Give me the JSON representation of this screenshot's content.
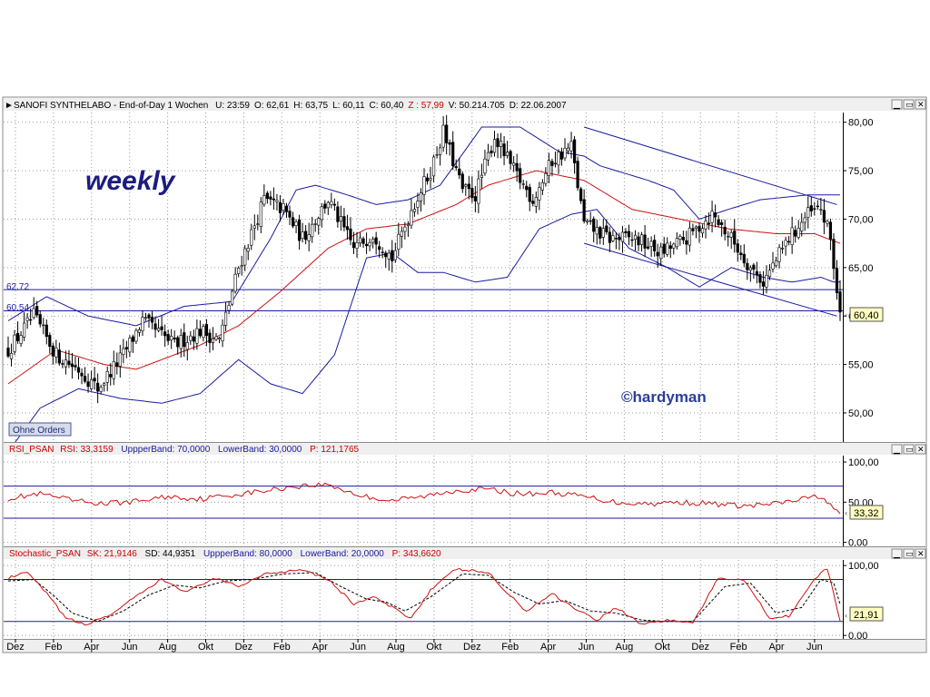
{
  "main_panel": {
    "header": {
      "symbol": "SANOFI SYNTHELABO",
      "mode": "End-of-Day 1 Wochen",
      "items": [
        {
          "k": "U:",
          "v": "23:59",
          "color": "#000000"
        },
        {
          "k": "O:",
          "v": "62,61",
          "color": "#000000"
        },
        {
          "k": "H:",
          "v": "63,75",
          "color": "#000000"
        },
        {
          "k": "L:",
          "v": "60,11",
          "color": "#000000"
        },
        {
          "k": "C:",
          "v": "60,40",
          "color": "#000000"
        },
        {
          "k": "Z :",
          "v": "57,99",
          "color": "#cc0000"
        },
        {
          "k": "V:",
          "v": "50.214.705",
          "color": "#000000"
        },
        {
          "k": "D:",
          "v": "22.06.2007",
          "color": "#000000"
        }
      ]
    },
    "weekly_label": "weekly",
    "copyright_label": "©hardyman",
    "orders_button": "Ohne Orders",
    "hline_labels": [
      "62.72",
      "60.54"
    ],
    "last_price_badge": "60,40"
  },
  "rsi_panel": {
    "header_parts": [
      "RSI_PSAN",
      "RSI: 33,3159",
      "UppperBand: 70,0000",
      "LowerBand: 30,0000",
      "P: 121,1765"
    ],
    "badge": "33,32"
  },
  "stoch_panel": {
    "header_parts": [
      "Stochastic_PSAN",
      "SK: 21,9146",
      "SD: 44,9351",
      "UppperBand: 80,0000",
      "LowerBand: 20,0000",
      "P: 343,6620"
    ],
    "badge": "21,91"
  },
  "chart_data": [
    {
      "type": "candlestick",
      "panel": "price",
      "ylim": [
        47,
        81
      ],
      "y_ticks": [
        "50,00",
        "55,00",
        "60,00",
        "65,00",
        "70,00",
        "75,00",
        "80,00"
      ],
      "horizontal_lines": [
        62.72,
        60.54
      ],
      "last_close": 60.4,
      "x_ticks": [
        "Dez",
        "Feb",
        "Apr",
        "Jun",
        "Aug",
        "Okt",
        "Dez",
        "Feb",
        "Apr",
        "Jun",
        "Aug",
        "Okt",
        "Dez",
        "Feb",
        "Apr",
        "Jun",
        "Aug",
        "Okt",
        "Dez",
        "Feb",
        "Apr",
        "Jun"
      ],
      "close_keypoints": [
        [
          0,
          56.5
        ],
        [
          8,
          60.0
        ],
        [
          15,
          56.0
        ],
        [
          22,
          54.5
        ],
        [
          28,
          52.5
        ],
        [
          36,
          56.0
        ],
        [
          42,
          59.5
        ],
        [
          52,
          57.0
        ],
        [
          60,
          58.5
        ],
        [
          66,
          57.5
        ],
        [
          72,
          65.0
        ],
        [
          80,
          72.0
        ],
        [
          86,
          71.0
        ],
        [
          92,
          68.0
        ],
        [
          100,
          72.0
        ],
        [
          108,
          67.0
        ],
        [
          114,
          68.5
        ],
        [
          120,
          66.0
        ],
        [
          126,
          71.0
        ],
        [
          132,
          75.0
        ],
        [
          136,
          79.0
        ],
        [
          142,
          73.0
        ],
        [
          146,
          72.5
        ],
        [
          152,
          78.5
        ],
        [
          158,
          75.0
        ],
        [
          164,
          72.0
        ],
        [
          170,
          76.0
        ],
        [
          176,
          77.5
        ],
        [
          180,
          69.5
        ],
        [
          188,
          68.0
        ],
        [
          196,
          68.0
        ],
        [
          204,
          66.5
        ],
        [
          212,
          68.0
        ],
        [
          220,
          70.5
        ],
        [
          226,
          68.0
        ],
        [
          232,
          65.0
        ],
        [
          236,
          63.5
        ],
        [
          244,
          68.0
        ],
        [
          250,
          70.5
        ],
        [
          254,
          71.0
        ],
        [
          257,
          68.0
        ],
        [
          259,
          62.5
        ],
        [
          260,
          60.4
        ]
      ],
      "moving_average_keypoints": [
        [
          0,
          53.0
        ],
        [
          15,
          56.5
        ],
        [
          30,
          55.0
        ],
        [
          40,
          54.5
        ],
        [
          60,
          57.0
        ],
        [
          72,
          59.0
        ],
        [
          85,
          62.5
        ],
        [
          100,
          67.0
        ],
        [
          112,
          69.0
        ],
        [
          125,
          69.5
        ],
        [
          140,
          71.5
        ],
        [
          150,
          73.5
        ],
        [
          165,
          75.0
        ],
        [
          180,
          74.0
        ],
        [
          195,
          71.0
        ],
        [
          210,
          70.0
        ],
        [
          225,
          69.0
        ],
        [
          240,
          68.5
        ],
        [
          252,
          68.5
        ],
        [
          260,
          67.5
        ]
      ],
      "bollinger_upper_keypoints": [
        [
          0,
          59.5
        ],
        [
          12,
          62.0
        ],
        [
          25,
          60.0
        ],
        [
          40,
          59.0
        ],
        [
          55,
          61.0
        ],
        [
          70,
          61.5
        ],
        [
          82,
          68.0
        ],
        [
          90,
          73.0
        ],
        [
          96,
          73.5
        ],
        [
          106,
          72.5
        ],
        [
          115,
          71.5
        ],
        [
          125,
          72.0
        ],
        [
          135,
          73.5
        ],
        [
          148,
          79.5
        ],
        [
          160,
          79.5
        ],
        [
          172,
          77.0
        ],
        [
          180,
          76.5
        ],
        [
          185,
          75.5
        ],
        [
          200,
          74.0
        ],
        [
          208,
          73.0
        ],
        [
          216,
          70.0
        ],
        [
          225,
          71.0
        ],
        [
          235,
          72.0
        ],
        [
          250,
          72.5
        ],
        [
          258,
          72.5
        ]
      ],
      "bollinger_lower_keypoints": [
        [
          0,
          46.0
        ],
        [
          10,
          50.5
        ],
        [
          22,
          52.5
        ],
        [
          35,
          51.5
        ],
        [
          48,
          51.0
        ],
        [
          60,
          52.0
        ],
        [
          72,
          55.5
        ],
        [
          82,
          53.0
        ],
        [
          92,
          52.0
        ],
        [
          102,
          56.0
        ],
        [
          112,
          66.0
        ],
        [
          120,
          66.5
        ],
        [
          128,
          64.5
        ],
        [
          136,
          64.5
        ],
        [
          146,
          63.5
        ],
        [
          156,
          64.0
        ],
        [
          166,
          69.0
        ],
        [
          176,
          70.5
        ],
        [
          184,
          71.0
        ],
        [
          194,
          67.0
        ],
        [
          206,
          65.0
        ],
        [
          216,
          63.0
        ],
        [
          226,
          65.0
        ],
        [
          236,
          64.0
        ],
        [
          245,
          63.5
        ],
        [
          254,
          64.0
        ],
        [
          258,
          63.5
        ]
      ],
      "channel_lines": [
        [
          [
            180,
            79.5
          ],
          [
            259,
            71.5
          ]
        ],
        [
          [
            180,
            67.5
          ],
          [
            259,
            60.0
          ]
        ]
      ]
    },
    {
      "type": "line",
      "panel": "RSI",
      "ylim": [
        -5,
        108
      ],
      "y_ticks": [
        "0,00",
        "50,00",
        "100,00"
      ],
      "bands": [
        70,
        30
      ],
      "last_value": 33.32,
      "keypoints": [
        [
          0,
          55
        ],
        [
          10,
          60
        ],
        [
          20,
          52
        ],
        [
          30,
          48
        ],
        [
          40,
          51
        ],
        [
          50,
          57
        ],
        [
          60,
          54
        ],
        [
          70,
          59
        ],
        [
          80,
          64
        ],
        [
          90,
          70
        ],
        [
          100,
          72
        ],
        [
          110,
          58
        ],
        [
          120,
          52
        ],
        [
          130,
          57
        ],
        [
          140,
          65
        ],
        [
          150,
          66
        ],
        [
          160,
          60
        ],
        [
          170,
          62
        ],
        [
          180,
          57
        ],
        [
          190,
          50
        ],
        [
          200,
          48
        ],
        [
          210,
          50
        ],
        [
          220,
          48
        ],
        [
          230,
          45
        ],
        [
          240,
          48
        ],
        [
          250,
          55
        ],
        [
          254,
          58
        ],
        [
          257,
          46
        ],
        [
          260,
          33.32
        ]
      ]
    },
    {
      "type": "line",
      "panel": "Stochastic",
      "ylim": [
        -5,
        108
      ],
      "y_ticks": [
        "0,00",
        "100,00"
      ],
      "bands": [
        80,
        20
      ],
      "series": [
        {
          "name": "SK",
          "last_value": 21.91,
          "keypoints": [
            [
              0,
              82
            ],
            [
              6,
              90
            ],
            [
              12,
              60
            ],
            [
              18,
              25
            ],
            [
              24,
              15
            ],
            [
              32,
              30
            ],
            [
              40,
              55
            ],
            [
              48,
              80
            ],
            [
              56,
              62
            ],
            [
              64,
              82
            ],
            [
              72,
              70
            ],
            [
              80,
              88
            ],
            [
              92,
              95
            ],
            [
              100,
              80
            ],
            [
              108,
              45
            ],
            [
              114,
              55
            ],
            [
              120,
              40
            ],
            [
              126,
              25
            ],
            [
              132,
              65
            ],
            [
              140,
              95
            ],
            [
              150,
              90
            ],
            [
              156,
              60
            ],
            [
              162,
              35
            ],
            [
              170,
              60
            ],
            [
              176,
              42
            ],
            [
              184,
              22
            ],
            [
              190,
              40
            ],
            [
              198,
              16
            ],
            [
              206,
              22
            ],
            [
              214,
              18
            ],
            [
              222,
              82
            ],
            [
              230,
              80
            ],
            [
              238,
              25
            ],
            [
              244,
              28
            ],
            [
              252,
              80
            ],
            [
              256,
              96
            ],
            [
              260,
              21.91
            ]
          ]
        },
        {
          "name": "SD",
          "style": "dashed",
          "last_value": 44.94,
          "keypoints": [
            [
              0,
              78
            ],
            [
              8,
              80
            ],
            [
              14,
              58
            ],
            [
              20,
              32
            ],
            [
              28,
              20
            ],
            [
              36,
              35
            ],
            [
              44,
              58
            ],
            [
              52,
              72
            ],
            [
              60,
              68
            ],
            [
              68,
              78
            ],
            [
              76,
              80
            ],
            [
              86,
              88
            ],
            [
              96,
              90
            ],
            [
              104,
              70
            ],
            [
              112,
              52
            ],
            [
              118,
              48
            ],
            [
              124,
              35
            ],
            [
              132,
              55
            ],
            [
              142,
              88
            ],
            [
              150,
              86
            ],
            [
              158,
              62
            ],
            [
              166,
              45
            ],
            [
              174,
              50
            ],
            [
              182,
              35
            ],
            [
              190,
              32
            ],
            [
              198,
              22
            ],
            [
              206,
              20
            ],
            [
              214,
              20
            ],
            [
              224,
              70
            ],
            [
              232,
              75
            ],
            [
              240,
              32
            ],
            [
              248,
              40
            ],
            [
              254,
              80
            ],
            [
              258,
              75
            ],
            [
              260,
              44.94
            ]
          ]
        }
      ]
    }
  ]
}
